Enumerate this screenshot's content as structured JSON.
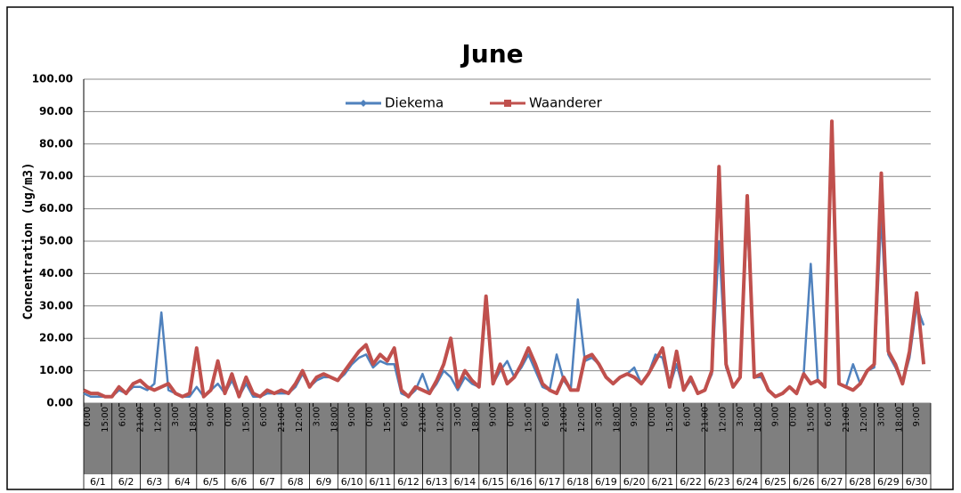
{
  "chart_data": {
    "type": "line",
    "title": "June",
    "y_label": "Concentration (ug/m3)",
    "ylim": [
      0,
      100
    ],
    "yticks": [
      {
        "value": 0,
        "label": "0.00"
      },
      {
        "value": 10,
        "label": "10.00"
      },
      {
        "value": 20,
        "label": "20.00"
      },
      {
        "value": 30,
        "label": "30.00"
      },
      {
        "value": 40,
        "label": "40.00"
      },
      {
        "value": 50,
        "label": "50.00"
      },
      {
        "value": 60,
        "label": "60.00"
      },
      {
        "value": 70,
        "label": "70.00"
      },
      {
        "value": 80,
        "label": "80.00"
      },
      {
        "value": 90,
        "label": "90.00"
      },
      {
        "value": 100,
        "label": "100.00"
      }
    ],
    "grid": true,
    "xlim": [
      0,
      720
    ],
    "xticks": [
      {
        "value": 0,
        "label": "0:00"
      },
      {
        "value": 15,
        "label": "15:00"
      },
      {
        "value": 30,
        "label": "6:00"
      },
      {
        "value": 45,
        "label": "21:00"
      },
      {
        "value": 60,
        "label": "12:00"
      },
      {
        "value": 75,
        "label": "3:00"
      },
      {
        "value": 90,
        "label": "18:00"
      },
      {
        "value": 105,
        "label": "9:00"
      },
      {
        "value": 120,
        "label": "0:00"
      },
      {
        "value": 135,
        "label": "15:00"
      },
      {
        "value": 150,
        "label": "6:00"
      },
      {
        "value": 165,
        "label": "21:00"
      },
      {
        "value": 180,
        "label": "12:00"
      },
      {
        "value": 195,
        "label": "3:00"
      },
      {
        "value": 210,
        "label": "18:00"
      },
      {
        "value": 225,
        "label": "9:00"
      },
      {
        "value": 240,
        "label": "0:00"
      },
      {
        "value": 255,
        "label": "15:00"
      },
      {
        "value": 270,
        "label": "6:00"
      },
      {
        "value": 285,
        "label": "21:00"
      },
      {
        "value": 300,
        "label": "12:00"
      },
      {
        "value": 315,
        "label": "3:00"
      },
      {
        "value": 330,
        "label": "18:00"
      },
      {
        "value": 345,
        "label": "9:00"
      },
      {
        "value": 360,
        "label": "0:00"
      },
      {
        "value": 375,
        "label": "15:00"
      },
      {
        "value": 390,
        "label": "6:00"
      },
      {
        "value": 405,
        "label": "21:00"
      },
      {
        "value": 420,
        "label": "12:00"
      },
      {
        "value": 435,
        "label": "3:00"
      },
      {
        "value": 450,
        "label": "18:00"
      },
      {
        "value": 465,
        "label": "9:00"
      },
      {
        "value": 480,
        "label": "0:00"
      },
      {
        "value": 495,
        "label": "15:00"
      },
      {
        "value": 510,
        "label": "6:00"
      },
      {
        "value": 525,
        "label": "21:00"
      },
      {
        "value": 540,
        "label": "12:00"
      },
      {
        "value": 555,
        "label": "3:00"
      },
      {
        "value": 570,
        "label": "18:00"
      },
      {
        "value": 585,
        "label": "9:00"
      },
      {
        "value": 600,
        "label": "0:00"
      },
      {
        "value": 615,
        "label": "15:00"
      },
      {
        "value": 630,
        "label": "6:00"
      },
      {
        "value": 645,
        "label": "21:00"
      },
      {
        "value": 660,
        "label": "12:00"
      },
      {
        "value": 675,
        "label": "3:00"
      },
      {
        "value": 690,
        "label": "18:00"
      },
      {
        "value": 705,
        "label": "9:00"
      }
    ],
    "day_labels": [
      "6/1",
      "6/2",
      "6/3",
      "6/4",
      "6/5",
      "6/6",
      "6/7",
      "6/8",
      "6/9",
      "6/10",
      "6/11",
      "6/12",
      "6/13",
      "6/14",
      "6/15",
      "6/16",
      "6/17",
      "6/18",
      "6/19",
      "6/20",
      "6/21",
      "6/22",
      "6/23",
      "6/24",
      "6/25",
      "6/26",
      "6/27",
      "6/28",
      "6/29",
      "6/30"
    ],
    "x": [
      0,
      6,
      12,
      18,
      24,
      30,
      36,
      42,
      48,
      54,
      60,
      66,
      72,
      78,
      84,
      90,
      96,
      102,
      108,
      114,
      120,
      126,
      132,
      138,
      144,
      150,
      156,
      162,
      168,
      174,
      180,
      186,
      192,
      198,
      204,
      210,
      216,
      222,
      228,
      234,
      240,
      246,
      252,
      258,
      264,
      270,
      276,
      282,
      288,
      294,
      300,
      306,
      312,
      318,
      324,
      330,
      336,
      342,
      348,
      354,
      360,
      366,
      372,
      378,
      384,
      390,
      396,
      402,
      408,
      414,
      420,
      426,
      432,
      438,
      444,
      450,
      456,
      462,
      468,
      474,
      480,
      486,
      492,
      498,
      504,
      510,
      516,
      522,
      528,
      534,
      540,
      546,
      552,
      558,
      564,
      570,
      576,
      582,
      588,
      594,
      600,
      606,
      612,
      618,
      624,
      630,
      636,
      642,
      648,
      654,
      660,
      666,
      672,
      678,
      684,
      690,
      696,
      702,
      708,
      714
    ],
    "legend": "top",
    "series": [
      {
        "name": "Diekema",
        "color": "#4f81bd",
        "values": [
          3,
          2,
          2,
          2,
          2,
          4,
          3,
          5,
          5,
          4,
          6,
          28,
          4,
          3,
          2,
          2,
          5,
          2,
          4,
          6,
          3,
          7,
          2,
          6,
          2,
          2,
          3,
          3,
          3,
          3,
          5,
          9,
          5,
          7,
          8,
          8,
          7,
          9,
          12,
          14,
          15,
          11,
          13,
          12,
          12,
          3,
          2,
          4,
          9,
          3,
          6,
          10,
          8,
          4,
          8,
          6,
          5,
          30,
          6,
          10,
          13,
          8,
          11,
          15,
          10,
          5,
          4,
          15,
          7,
          4,
          32,
          13,
          14,
          12,
          8,
          6,
          8,
          9,
          11,
          6,
          9,
          15,
          14,
          5,
          12,
          4,
          7,
          3,
          4,
          9,
          50,
          11,
          5,
          8,
          58,
          8,
          8,
          4,
          2,
          3,
          5,
          3,
          9,
          43,
          7,
          5,
          83,
          6,
          5,
          12,
          6,
          10,
          11,
          58,
          15,
          11,
          6,
          14,
          30,
          24
        ]
      },
      {
        "name": "Waanderer",
        "color": "#c0504d",
        "values": [
          4,
          3,
          3,
          2,
          2,
          5,
          3,
          6,
          7,
          5,
          4,
          5,
          6,
          3,
          2,
          3,
          17,
          2,
          4,
          13,
          3,
          9,
          2,
          8,
          3,
          2,
          4,
          3,
          4,
          3,
          6,
          10,
          5,
          8,
          9,
          8,
          7,
          10,
          13,
          16,
          18,
          12,
          15,
          13,
          17,
          4,
          2,
          5,
          4,
          3,
          7,
          12,
          20,
          5,
          10,
          7,
          5,
          33,
          6,
          12,
          6,
          8,
          12,
          17,
          12,
          6,
          4,
          3,
          8,
          4,
          4,
          14,
          15,
          12,
          8,
          6,
          8,
          9,
          8,
          6,
          9,
          13,
          17,
          5,
          16,
          4,
          8,
          3,
          4,
          10,
          73,
          12,
          5,
          8,
          64,
          8,
          9,
          4,
          2,
          3,
          5,
          3,
          9,
          6,
          7,
          5,
          87,
          6,
          5,
          4,
          6,
          10,
          12,
          71,
          16,
          12,
          6,
          16,
          34,
          12
        ]
      }
    ]
  }
}
